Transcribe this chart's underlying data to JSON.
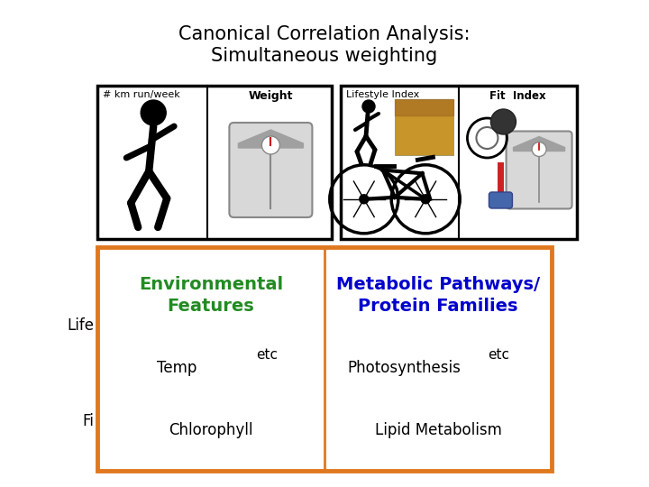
{
  "title_line1": "Canonical Correlation Analysis:",
  "title_line2": "Simultaneous weighting",
  "title_fontsize": 15,
  "title_color": "#000000",
  "box1_label_left": "# km run/week",
  "box1_label_right": "Weight",
  "box2_label_left": "Lifestyle Index",
  "box2_label_right": "Fit  Index",
  "left_box_color": "#000000",
  "right_box_color": "#000000",
  "orange_box_color": "#E07820",
  "env_title": "Environmental\nFeatures",
  "env_color": "#228B22",
  "meta_title": "Metabolic Pathways/\nProtein Families",
  "meta_color": "#0000CC",
  "bg_color": "#FFFFFF"
}
